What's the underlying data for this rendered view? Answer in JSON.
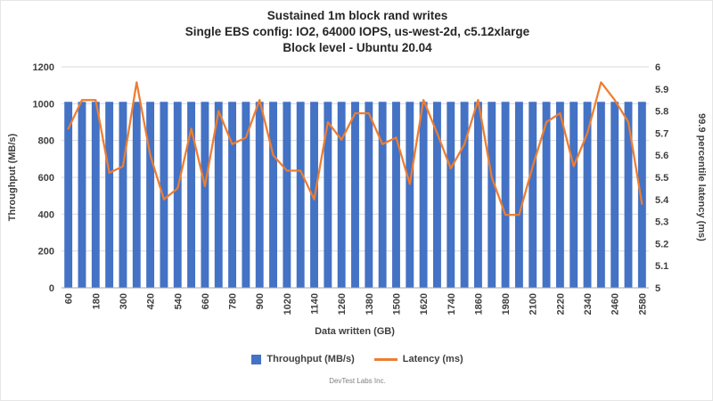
{
  "title": {
    "lines": [
      "Sustained 1m block rand writes",
      "Single EBS config: IO2, 64000 IOPS, us-west-2d, c5.12xlarge",
      "Block level - Ubuntu 20.04"
    ]
  },
  "legend": {
    "items": [
      {
        "label": "Throughput (MB/s)",
        "color": "#4472C4",
        "marker": "bar"
      },
      {
        "label": "Latency (ms)",
        "color": "#ED7D31",
        "marker": "line"
      }
    ]
  },
  "footer": {
    "text": "DevTest Labs Inc."
  },
  "colors": {
    "bar": "#4472C4",
    "line": "#ED7D31",
    "grid": "#D9D9D9",
    "axis": "#A6A6A6",
    "text": "#404040"
  },
  "chart_data": {
    "type": "bar",
    "title": "Sustained 1m block rand writes / Single EBS config: IO2, 64000 IOPS, us-west-2d, c5.12xlarge / Block level - Ubuntu 20.04",
    "xlabel": "Data written (GB)",
    "ylabel_left": "Throughput (MB/s)",
    "ylabel_right": "99.9 percentile latency (ms)",
    "ylim_left": [
      0,
      1200
    ],
    "ylim_right": [
      5,
      6
    ],
    "yticks_left": [
      0,
      200,
      400,
      600,
      800,
      1000,
      1200
    ],
    "yticks_right": [
      5,
      5.1,
      5.2,
      5.3,
      5.4,
      5.5,
      5.6,
      5.7,
      5.8,
      5.9,
      6
    ],
    "grid": true,
    "legend_position": "bottom",
    "x": [
      60,
      120,
      180,
      240,
      300,
      360,
      420,
      480,
      540,
      600,
      660,
      720,
      780,
      840,
      900,
      960,
      1020,
      1080,
      1140,
      1200,
      1260,
      1320,
      1380,
      1440,
      1500,
      1560,
      1620,
      1680,
      1740,
      1800,
      1860,
      1920,
      1980,
      2040,
      2100,
      2160,
      2220,
      2280,
      2340,
      2400,
      2460,
      2520,
      2580
    ],
    "xticks": [
      60,
      180,
      300,
      420,
      540,
      660,
      780,
      900,
      1020,
      1140,
      1260,
      1380,
      1500,
      1620,
      1740,
      1860,
      1980,
      2100,
      2220,
      2340,
      2460,
      2580
    ],
    "series": [
      {
        "name": "Throughput (MB/s)",
        "type": "bar",
        "axis": "left",
        "color": "#4472C4",
        "values": [
          1010,
          1010,
          1010,
          1010,
          1010,
          1010,
          1010,
          1010,
          1010,
          1010,
          1010,
          1010,
          1010,
          1010,
          1010,
          1010,
          1010,
          1010,
          1010,
          1010,
          1010,
          1010,
          1010,
          1010,
          1010,
          1010,
          1010,
          1010,
          1010,
          1010,
          1010,
          1010,
          1010,
          1010,
          1010,
          1010,
          1010,
          1010,
          1010,
          1010,
          1010,
          1010,
          1010
        ]
      },
      {
        "name": "Latency (ms)",
        "type": "line",
        "axis": "right",
        "color": "#ED7D31",
        "values": [
          5.72,
          5.85,
          5.85,
          5.52,
          5.55,
          5.93,
          5.6,
          5.4,
          5.45,
          5.72,
          5.46,
          5.8,
          5.65,
          5.68,
          5.85,
          5.6,
          5.53,
          5.53,
          5.4,
          5.75,
          5.67,
          5.79,
          5.79,
          5.65,
          5.68,
          5.47,
          5.85,
          5.7,
          5.54,
          5.65,
          5.85,
          5.5,
          5.33,
          5.33,
          5.55,
          5.75,
          5.79,
          5.55,
          5.7,
          5.93,
          5.85,
          5.75,
          5.38
        ]
      }
    ]
  }
}
